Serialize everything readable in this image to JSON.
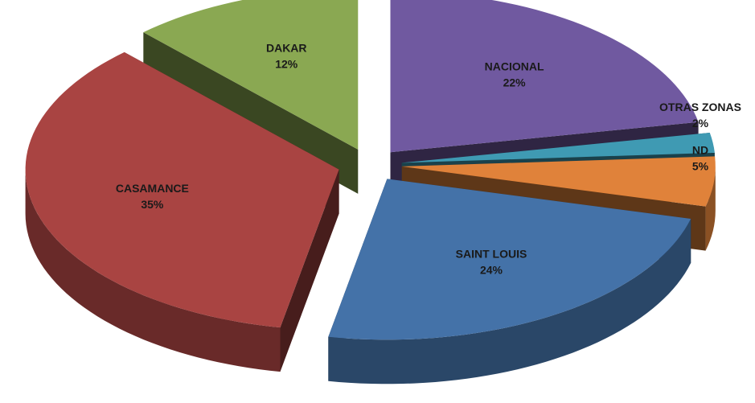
{
  "chart_data": {
    "type": "pie",
    "style": "3d-exploded",
    "categories": [
      "NACIONAL",
      "OTRAS ZONAS",
      "ND",
      "SAINT LOUIS",
      "CASAMANCE",
      "DAKAR"
    ],
    "values": [
      22,
      2,
      5,
      24,
      35,
      12
    ],
    "value_labels": [
      "22%",
      "2%",
      "5%",
      "24%",
      "35%",
      "12%"
    ],
    "colors": [
      "#7059a0",
      "#3f9ab3",
      "#e0823a",
      "#4472a8",
      "#a94442",
      "#8aa852"
    ]
  }
}
